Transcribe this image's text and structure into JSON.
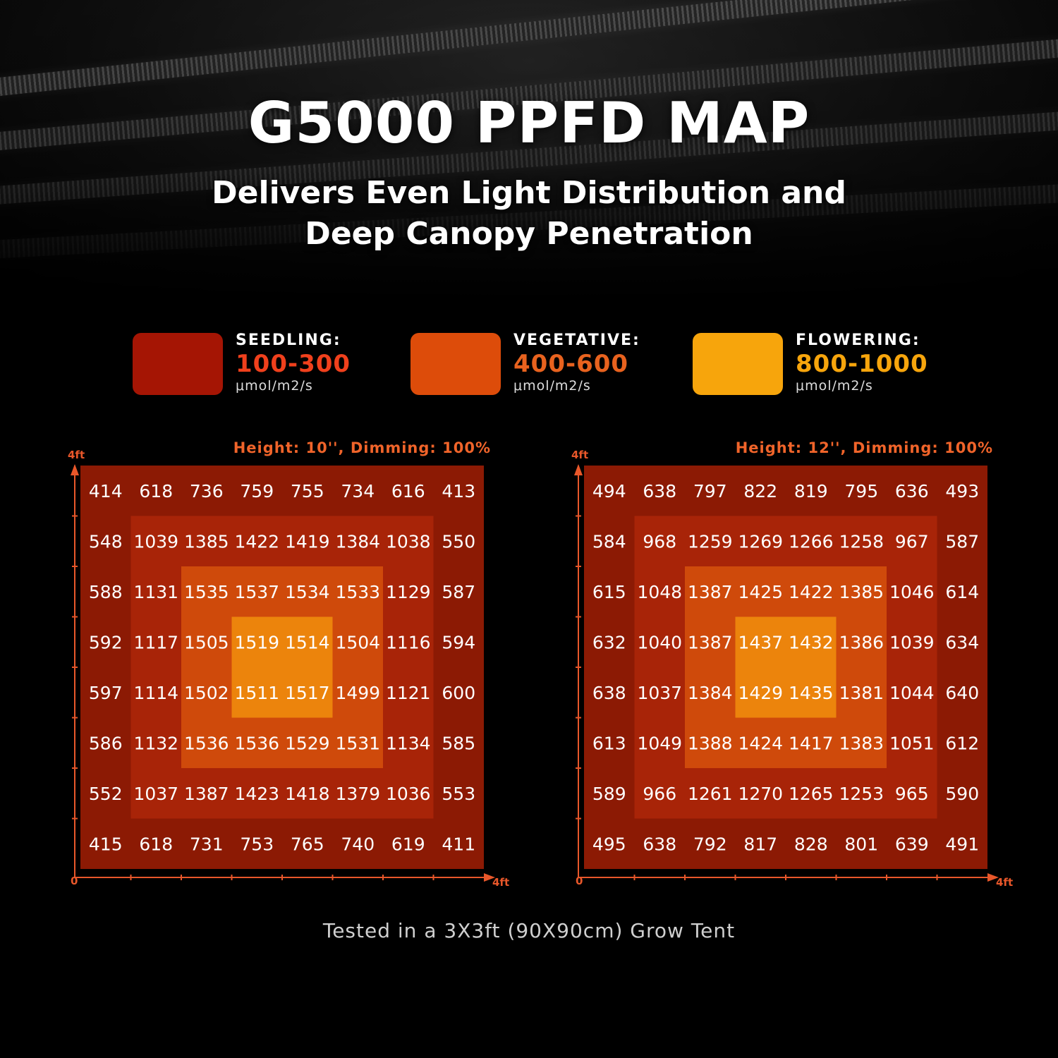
{
  "header": {
    "title": "G5000 PPFD MAP",
    "subtitle_line1": "Delivers Even Light Distribution and",
    "subtitle_line2": "Deep Canopy Penetration"
  },
  "legend": [
    {
      "label": "SEEDLING:",
      "range": "100-300",
      "unit": "μmol/m2/s",
      "color": "#a51504",
      "text_color": "#f0401c"
    },
    {
      "label": "VEGETATIVE:",
      "range": "400-600",
      "unit": "μmol/m2/s",
      "color": "#dd4c0a",
      "text_color": "#e8621e"
    },
    {
      "label": "FLOWERING:",
      "range": "800-1000",
      "unit": "μmol/m2/s",
      "color": "#f7a50c",
      "text_color": "#f7a50c"
    }
  ],
  "zone_colors": [
    "#8c1a04",
    "#a82408",
    "#cf4a0b",
    "#ec840c"
  ],
  "footnote": "Tested in a 3X3ft (90X90cm) Grow Tent",
  "chart_data": [
    {
      "type": "heatmap",
      "title": "Height: 10'', Dimming: 100%",
      "x_axis_label": "4ft",
      "y_axis_label": "4ft",
      "origin_label": "0",
      "values": [
        [
          414,
          618,
          736,
          759,
          755,
          734,
          616,
          413
        ],
        [
          548,
          1039,
          1385,
          1422,
          1419,
          1384,
          1038,
          550
        ],
        [
          588,
          1131,
          1535,
          1537,
          1534,
          1533,
          1129,
          587
        ],
        [
          592,
          1117,
          1505,
          1519,
          1514,
          1504,
          1116,
          594
        ],
        [
          597,
          1114,
          1502,
          1511,
          1517,
          1499,
          1121,
          600
        ],
        [
          586,
          1132,
          1536,
          1536,
          1529,
          1531,
          1134,
          585
        ],
        [
          552,
          1037,
          1387,
          1423,
          1418,
          1379,
          1036,
          553
        ],
        [
          415,
          618,
          731,
          753,
          765,
          740,
          619,
          411
        ]
      ]
    },
    {
      "type": "heatmap",
      "title": "Height: 12'', Dimming: 100%",
      "x_axis_label": "4ft",
      "y_axis_label": "4ft",
      "origin_label": "0",
      "values": [
        [
          494,
          638,
          797,
          822,
          819,
          795,
          636,
          493
        ],
        [
          584,
          968,
          1259,
          1269,
          1266,
          1258,
          967,
          587
        ],
        [
          615,
          1048,
          1387,
          1425,
          1422,
          1385,
          1046,
          614
        ],
        [
          632,
          1040,
          1387,
          1437,
          1432,
          1386,
          1039,
          634
        ],
        [
          638,
          1037,
          1384,
          1429,
          1435,
          1381,
          1044,
          640
        ],
        [
          613,
          1049,
          1388,
          1424,
          1417,
          1383,
          1051,
          612
        ],
        [
          589,
          966,
          1261,
          1270,
          1265,
          1253,
          965,
          590
        ],
        [
          495,
          638,
          792,
          817,
          828,
          801,
          639,
          491
        ]
      ]
    }
  ]
}
